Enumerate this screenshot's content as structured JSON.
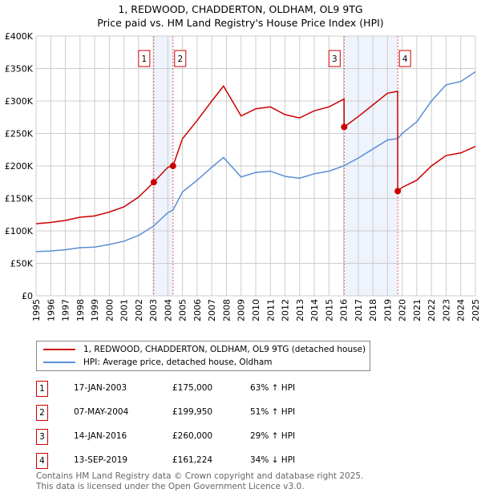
{
  "title": "1, REDWOOD, CHADDERTON, OLDHAM, OL9 9TG",
  "subtitle": "Price paid vs. HM Land Registry's House Price Index (HPI)",
  "chart_data": {
    "type": "line",
    "title": "1, REDWOOD, CHADDERTON, OLDHAM, OL9 9TG",
    "subtitle": "Price paid vs. HM Land Registry's House Price Index (HPI)",
    "xlim": [
      1995,
      2025
    ],
    "ylim": [
      0,
      400000
    ],
    "yticks": [
      0,
      50000,
      100000,
      150000,
      200000,
      250000,
      300000,
      350000,
      400000
    ],
    "ytick_labels": [
      "£0",
      "£50K",
      "£100K",
      "£150K",
      "£200K",
      "£250K",
      "£300K",
      "£350K",
      "£400K"
    ],
    "xticks": [
      1995,
      1996,
      1997,
      1998,
      1999,
      2000,
      2001,
      2002,
      2003,
      2004,
      2005,
      2006,
      2007,
      2008,
      2009,
      2010,
      2011,
      2012,
      2013,
      2014,
      2015,
      2016,
      2017,
      2018,
      2019,
      2020,
      2021,
      2022,
      2023,
      2024,
      2025
    ],
    "grid": true,
    "colors": {
      "property": "#cc0000",
      "hpi": "#5b8fd4",
      "shade": "#eef3fc"
    },
    "series": [
      {
        "name": "1, REDWOOD, CHADDERTON, OLDHAM, OL9 9TG (detached house)",
        "color": "#cc0000",
        "x": [
          1995,
          1996,
          1997,
          1998,
          1999,
          2000,
          2001,
          2002,
          2003.04,
          2004,
          2004.35,
          2005,
          2006,
          2007,
          2007.8,
          2009,
          2010,
          2011,
          2012,
          2013,
          2014,
          2015,
          2016.03,
          2016.04,
          2017,
          2018,
          2019,
          2019.69,
          2019.7,
          2020,
          2021,
          2022,
          2023,
          2024,
          2025
        ],
        "y": [
          111000,
          113000,
          116000,
          121000,
          123000,
          129000,
          137000,
          152000,
          175000,
          198000,
          199950,
          242000,
          270000,
          300000,
          323000,
          277000,
          288000,
          291000,
          279000,
          274000,
          285000,
          291000,
          303000,
          260000,
          276000,
          294000,
          312000,
          315000,
          161224,
          167000,
          178000,
          200000,
          216000,
          220000,
          230000
        ]
      },
      {
        "name": "HPI: Average price, detached house, Oldham",
        "color": "#5b8fd4",
        "x": [
          1995,
          1996,
          1997,
          1998,
          1999,
          2000,
          2001,
          2002,
          2003,
          2004,
          2004.35,
          2005,
          2006,
          2007,
          2007.8,
          2009,
          2010,
          2011,
          2012,
          2013,
          2014,
          2015,
          2016,
          2017,
          2018,
          2019,
          2019.7,
          2020,
          2021,
          2022,
          2023,
          2024,
          2025
        ],
        "y": [
          68000,
          69000,
          71000,
          74000,
          75000,
          79000,
          84000,
          93000,
          107000,
          128000,
          132000,
          160000,
          178000,
          198000,
          213000,
          183000,
          190000,
          192000,
          184000,
          181000,
          188000,
          192000,
          200000,
          212000,
          226000,
          240000,
          242000,
          250000,
          268000,
          300000,
          325000,
          330000,
          345000
        ]
      }
    ],
    "shaded_ranges": [
      [
        2003.04,
        2004.35
      ],
      [
        2016.04,
        2019.7
      ]
    ],
    "sales": [
      {
        "label": "1",
        "x": 2003.04,
        "y": 175000,
        "date": "17-JAN-2003",
        "price": "£175,000",
        "hpi": "63% ↑ HPI"
      },
      {
        "label": "2",
        "x": 2004.35,
        "y": 199950,
        "date": "07-MAY-2004",
        "price": "£199,950",
        "hpi": "51% ↑ HPI"
      },
      {
        "label": "3",
        "x": 2016.04,
        "y": 260000,
        "date": "14-JAN-2016",
        "price": "£260,000",
        "hpi": "29% ↑ HPI"
      },
      {
        "label": "4",
        "x": 2019.7,
        "y": 161224,
        "date": "13-SEP-2019",
        "price": "£161,224",
        "hpi": "34% ↓ HPI"
      }
    ]
  },
  "legend": {
    "property": "1, REDWOOD, CHADDERTON, OLDHAM, OL9 9TG (detached house)",
    "hpi": "HPI: Average price, detached house, Oldham"
  },
  "footer": [
    "Contains HM Land Registry data © Crown copyright and database right 2025.",
    "This data is licensed under the Open Government Licence v3.0."
  ]
}
